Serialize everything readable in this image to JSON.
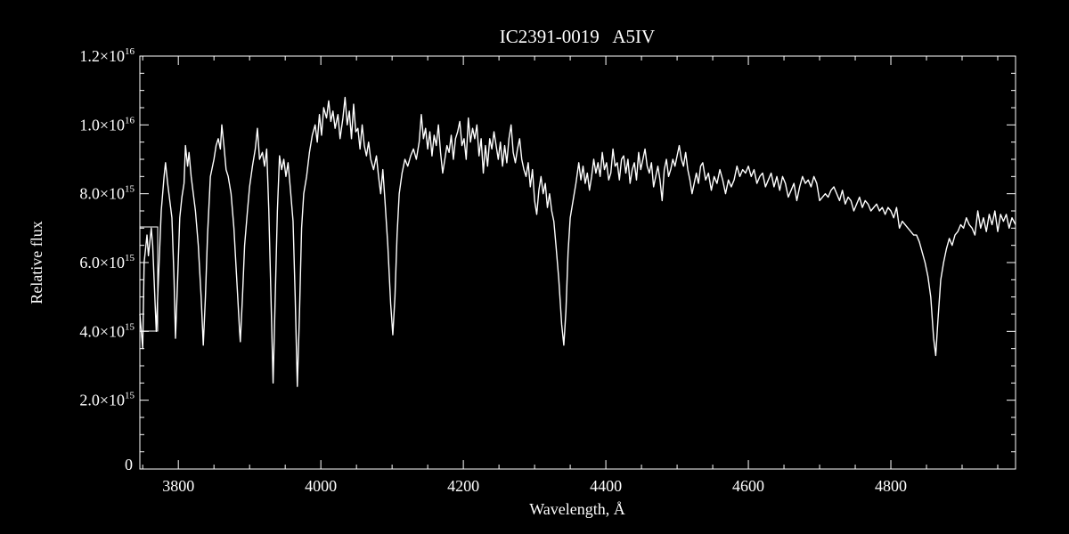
{
  "chart_data": {
    "type": "line",
    "title": "IC2391-0019   A5IV",
    "x_label": "Wavelength, Å",
    "y_label": "Relative flux",
    "color": "#ffffff",
    "xlim": [
      3746,
      4975
    ],
    "ylim": [
      0,
      1.2e+16
    ],
    "xticks": [
      3800,
      4000,
      4200,
      4400,
      4600,
      4800
    ],
    "xminorticks": [
      3750,
      3850,
      3900,
      3950,
      4050,
      4100,
      4150,
      4250,
      4300,
      4350,
      4450,
      4500,
      4550,
      4650,
      4700,
      4750,
      4850,
      4900,
      4950
    ],
    "yticks": [
      0,
      {
        "value": 2000000000000000.0,
        "label": "2.0×10",
        "exponent": "15"
      },
      {
        "value": 4000000000000000.0,
        "label": "4.0×10",
        "exponent": "15"
      },
      {
        "value": 6000000000000000.0,
        "label": "6.0×10",
        "exponent": "15"
      },
      {
        "value": 8000000000000000.0,
        "label": "8.0×10",
        "exponent": "15"
      },
      {
        "value": 1e+16,
        "label": "1.0×10",
        "exponent": "16"
      },
      {
        "value": 1.2e+16,
        "label": "1.2×10",
        "exponent": "16"
      }
    ],
    "yminorticks": [
      500000000000000.0,
      1000000000000000.0,
      1500000000000000.0,
      2500000000000000.0,
      3000000000000000.0,
      3500000000000000.0,
      4500000000000000.0,
      5000000000000000.0,
      5500000000000000.0,
      6500000000000000.0,
      7000000000000000.0,
      7500000000000000.0,
      8500000000000000.0,
      9000000000000000.0,
      9500000000000000.0,
      1.05e+16,
      1.1e+16,
      1.15e+16
    ],
    "x": [
      3746,
      3750,
      3752,
      3756,
      3758,
      3762,
      3764,
      3766,
      3769,
      3772,
      3776,
      3780,
      3782,
      3785,
      3788,
      3791,
      3794,
      3796,
      3799,
      3802,
      3805,
      3808,
      3810,
      3813,
      3815,
      3818,
      3821,
      3824,
      3828,
      3832,
      3835,
      3838,
      3841,
      3845,
      3850,
      3853,
      3856,
      3859,
      3861,
      3864,
      3867,
      3870,
      3874,
      3878,
      3882,
      3886,
      3887,
      3890,
      3893,
      3897,
      3900,
      3904,
      3908,
      3911,
      3914,
      3918,
      3921,
      3924,
      3927,
      3930,
      3933,
      3936,
      3939,
      3942,
      3945,
      3948,
      3951,
      3954,
      3957,
      3961,
      3964,
      3967,
      3970,
      3973,
      3976,
      3980,
      3984,
      3988,
      3992,
      3995,
      3998,
      4001,
      4004,
      4008,
      4011,
      4014,
      4017,
      4020,
      4024,
      4027,
      4031,
      4034,
      4037,
      4040,
      4043,
      4046,
      4049,
      4052,
      4055,
      4058,
      4061,
      4064,
      4067,
      4070,
      4074,
      4078,
      4081,
      4084,
      4087,
      4090,
      4094,
      4098,
      4101,
      4104,
      4107,
      4110,
      4114,
      4118,
      4122,
      4126,
      4130,
      4134,
      4138,
      4141,
      4144,
      4147,
      4150,
      4153,
      4156,
      4159,
      4162,
      4165,
      4168,
      4171,
      4174,
      4177,
      4180,
      4183,
      4186,
      4189,
      4192,
      4195,
      4198,
      4201,
      4204,
      4207,
      4210,
      4213,
      4216,
      4219,
      4222,
      4225,
      4228,
      4231,
      4234,
      4237,
      4240,
      4243,
      4246,
      4249,
      4252,
      4255,
      4258,
      4261,
      4264,
      4267,
      4270,
      4273,
      4276,
      4279,
      4282,
      4285,
      4288,
      4291,
      4294,
      4297,
      4300,
      4303,
      4306,
      4309,
      4312,
      4315,
      4318,
      4321,
      4324,
      4327,
      4330,
      4334,
      4338,
      4341,
      4344,
      4347,
      4350,
      4354,
      4358,
      4362,
      4365,
      4368,
      4371,
      4374,
      4377,
      4380,
      4383,
      4386,
      4389,
      4392,
      4395,
      4398,
      4401,
      4404,
      4407,
      4410,
      4413,
      4416,
      4419,
      4422,
      4425,
      4428,
      4431,
      4434,
      4437,
      4440,
      4443,
      4446,
      4449,
      4452,
      4455,
      4458,
      4461,
      4464,
      4467,
      4470,
      4473,
      4476,
      4479,
      4482,
      4485,
      4488,
      4491,
      4494,
      4497,
      4500,
      4503,
      4506,
      4509,
      4512,
      4515,
      4518,
      4521,
      4524,
      4527,
      4530,
      4533,
      4536,
      4540,
      4544,
      4548,
      4552,
      4556,
      4560,
      4564,
      4568,
      4572,
      4576,
      4580,
      4584,
      4588,
      4592,
      4596,
      4600,
      4604,
      4608,
      4612,
      4616,
      4620,
      4624,
      4628,
      4632,
      4636,
      4640,
      4644,
      4648,
      4652,
      4656,
      4660,
      4664,
      4668,
      4672,
      4676,
      4680,
      4684,
      4688,
      4692,
      4696,
      4700,
      4704,
      4708,
      4712,
      4716,
      4720,
      4724,
      4728,
      4732,
      4736,
      4740,
      4744,
      4748,
      4752,
      4756,
      4760,
      4764,
      4768,
      4772,
      4776,
      4780,
      4784,
      4788,
      4792,
      4796,
      4800,
      4804,
      4808,
      4812,
      4816,
      4820,
      4824,
      4828,
      4832,
      4836,
      4840,
      4844,
      4848,
      4852,
      4856,
      4860,
      4863,
      4866,
      4870,
      4874,
      4878,
      4882,
      4886,
      4890,
      4894,
      4898,
      4902,
      4906,
      4910,
      4914,
      4918,
      4922,
      4926,
      4930,
      4934,
      4938,
      4942,
      4946,
      4950,
      4954,
      4958,
      4962,
      4966,
      4970,
      4975
    ],
    "values": [
      4500000000000000.0,
      3500000000000000.0,
      6000000000000000.0,
      6800000000000000.0,
      6200000000000000.0,
      7000000000000000.0,
      6500000000000000.0,
      5500000000000000.0,
      4000000000000000.0,
      5500000000000000.0,
      7500000000000000.0,
      8500000000000000.0,
      8900000000000000.0,
      8300000000000000.0,
      7800000000000000.0,
      7300000000000000.0,
      5500000000000000.0,
      3800000000000000.0,
      5500000000000000.0,
      7300000000000000.0,
      7900000000000000.0,
      8300000000000000.0,
      9400000000000000.0,
      8800000000000000.0,
      9200000000000000.0,
      8500000000000000.0,
      8000000000000000.0,
      7500000000000000.0,
      6500000000000000.0,
      5000000000000000.0,
      3600000000000000.0,
      5000000000000000.0,
      6800000000000000.0,
      8500000000000000.0,
      9000000000000000.0,
      9400000000000000.0,
      9600000000000000.0,
      9300000000000000.0,
      1e+16,
      9400000000000000.0,
      8700000000000000.0,
      8500000000000000.0,
      8000000000000000.0,
      7000000000000000.0,
      5500000000000000.0,
      4000000000000000.0,
      3700000000000000.0,
      5000000000000000.0,
      6500000000000000.0,
      7500000000000000.0,
      8200000000000000.0,
      8800000000000000.0,
      9300000000000000.0,
      9900000000000000.0,
      9000000000000000.0,
      9200000000000000.0,
      8800000000000000.0,
      9300000000000000.0,
      7500000000000000.0,
      5000000000000000.0,
      2500000000000000.0,
      5000000000000000.0,
      7500000000000000.0,
      9100000000000000.0,
      8700000000000000.0,
      9000000000000000.0,
      8500000000000000.0,
      8900000000000000.0,
      8200000000000000.0,
      7200000000000000.0,
      5000000000000000.0,
      2400000000000000.0,
      4500000000000000.0,
      7000000000000000.0,
      8000000000000000.0,
      8500000000000000.0,
      9200000000000000.0,
      9700000000000000.0,
      1e+16,
      9500000000000000.0,
      1.03e+16,
      9700000000000000.0,
      1.05e+16,
      1.02e+16,
      1.07e+16,
      1.01e+16,
      1.04e+16,
      9900000000000000.0,
      1.03e+16,
      9600000000000000.0,
      1.02e+16,
      1.08e+16,
      1e+16,
      1.04e+16,
      9600000000000000.0,
      1.06e+16,
      9800000000000000.0,
      9900000000000000.0,
      9300000000000000.0,
      1e+16,
      9400000000000000.0,
      9100000000000000.0,
      9500000000000000.0,
      9000000000000000.0,
      8700000000000000.0,
      9100000000000000.0,
      8500000000000000.0,
      8000000000000000.0,
      8700000000000000.0,
      7800000000000000.0,
      6500000000000000.0,
      4800000000000000.0,
      3900000000000000.0,
      5000000000000000.0,
      6800000000000000.0,
      8000000000000000.0,
      8600000000000000.0,
      9000000000000000.0,
      8800000000000000.0,
      9100000000000000.0,
      9300000000000000.0,
      9000000000000000.0,
      9500000000000000.0,
      1.03e+16,
      9600000000000000.0,
      9900000000000000.0,
      9300000000000000.0,
      9800000000000000.0,
      9100000000000000.0,
      9700000000000000.0,
      9400000000000000.0,
      1e+16,
      9200000000000000.0,
      8600000000000000.0,
      9000000000000000.0,
      9400000000000000.0,
      9200000000000000.0,
      9700000000000000.0,
      9000000000000000.0,
      9600000000000000.0,
      9800000000000000.0,
      1.01e+16,
      9400000000000000.0,
      9600000000000000.0,
      9000000000000000.0,
      1.02e+16,
      9500000000000000.0,
      9900000000000000.0,
      9600000000000000.0,
      1e+16,
      9100000000000000.0,
      9600000000000000.0,
      8600000000000000.0,
      9400000000000000.0,
      8800000000000000.0,
      9600000000000000.0,
      9300000000000000.0,
      9800000000000000.0,
      9400000000000000.0,
      9000000000000000.0,
      9500000000000000.0,
      8800000000000000.0,
      9400000000000000.0,
      8900000000000000.0,
      9600000000000000.0,
      1e+16,
      9200000000000000.0,
      8900000000000000.0,
      9300000000000000.0,
      9600000000000000.0,
      9000000000000000.0,
      8700000000000000.0,
      8500000000000000.0,
      8900000000000000.0,
      8200000000000000.0,
      8700000000000000.0,
      7800000000000000.0,
      7400000000000000.0,
      8100000000000000.0,
      8500000000000000.0,
      8000000000000000.0,
      8300000000000000.0,
      7600000000000000.0,
      8000000000000000.0,
      7500000000000000.0,
      7200000000000000.0,
      6500000000000000.0,
      5500000000000000.0,
      4200000000000000.0,
      3600000000000000.0,
      4600000000000000.0,
      6300000000000000.0,
      7300000000000000.0,
      7800000000000000.0,
      8300000000000000.0,
      8900000000000000.0,
      8400000000000000.0,
      8800000000000000.0,
      8300000000000000.0,
      8600000000000000.0,
      8100000000000000.0,
      8500000000000000.0,
      9000000000000000.0,
      8600000000000000.0,
      8900000000000000.0,
      8500000000000000.0,
      9200000000000000.0,
      8700000000000000.0,
      8900000000000000.0,
      8400000000000000.0,
      8600000000000000.0,
      9300000000000000.0,
      8800000000000000.0,
      8900000000000000.0,
      8400000000000000.0,
      9000000000000000.0,
      9100000000000000.0,
      8600000000000000.0,
      9000000000000000.0,
      8300000000000000.0,
      8700000000000000.0,
      8900000000000000.0,
      8400000000000000.0,
      9200000000000000.0,
      8700000000000000.0,
      9000000000000000.0,
      9300000000000000.0,
      8800000000000000.0,
      8600000000000000.0,
      8900000000000000.0,
      8200000000000000.0,
      8500000000000000.0,
      8800000000000000.0,
      8400000000000000.0,
      7800000000000000.0,
      8700000000000000.0,
      9000000000000000.0,
      8500000000000000.0,
      8700000000000000.0,
      9000000000000000.0,
      8800000000000000.0,
      9100000000000000.0,
      9400000000000000.0,
      9000000000000000.0,
      8800000000000000.0,
      9200000000000000.0,
      8700000000000000.0,
      8400000000000000.0,
      8000000000000000.0,
      8300000000000000.0,
      8600000000000000.0,
      8300000000000000.0,
      8800000000000000.0,
      8900000000000000.0,
      8400000000000000.0,
      8600000000000000.0,
      8100000000000000.0,
      8500000000000000.0,
      8300000000000000.0,
      8700000000000000.0,
      8400000000000000.0,
      8000000000000000.0,
      8400000000000000.0,
      8200000000000000.0,
      8400000000000000.0,
      8800000000000000.0,
      8500000000000000.0,
      8700000000000000.0,
      8600000000000000.0,
      8800000000000000.0,
      8500000000000000.0,
      8700000000000000.0,
      8300000000000000.0,
      8500000000000000.0,
      8600000000000000.0,
      8200000000000000.0,
      8400000000000000.0,
      8600000000000000.0,
      8200000000000000.0,
      8500000000000000.0,
      8100000000000000.0,
      8500000000000000.0,
      8300000000000000.0,
      7900000000000000.0,
      8100000000000000.0,
      8300000000000000.0,
      7800000000000000.0,
      8200000000000000.0,
      8500000000000000.0,
      8300000000000000.0,
      8400000000000000.0,
      8200000000000000.0,
      8500000000000000.0,
      8300000000000000.0,
      7800000000000000.0,
      7900000000000000.0,
      8000000000000000.0,
      7900000000000000.0,
      8100000000000000.0,
      8200000000000000.0,
      8000000000000000.0,
      7800000000000000.0,
      8100000000000000.0,
      7700000000000000.0,
      7900000000000000.0,
      7800000000000000.0,
      7500000000000000.0,
      7700000000000000.0,
      7900000000000000.0,
      7600000000000000.0,
      7800000000000000.0,
      7700000000000000.0,
      7500000000000000.0,
      7600000000000000.0,
      7700000000000000.0,
      7500000000000000.0,
      7600000000000000.0,
      7400000000000000.0,
      7600000000000000.0,
      7500000000000000.0,
      7300000000000000.0,
      7600000000000000.0,
      7000000000000000.0,
      7200000000000000.0,
      7100000000000000.0,
      7000000000000000.0,
      6900000000000000.0,
      6800000000000000.0,
      6800000000000000.0,
      6600000000000000.0,
      6300000000000000.0,
      6000000000000000.0,
      5600000000000000.0,
      5000000000000000.0,
      3800000000000000.0,
      3300000000000000.0,
      4300000000000000.0,
      5500000000000000.0,
      6000000000000000.0,
      6400000000000000.0,
      6700000000000000.0,
      6500000000000000.0,
      6800000000000000.0,
      6900000000000000.0,
      7100000000000000.0,
      7000000000000000.0,
      7300000000000000.0,
      7100000000000000.0,
      7000000000000000.0,
      6800000000000000.0,
      7500000000000000.0,
      7000000000000000.0,
      7300000000000000.0,
      6900000000000000.0,
      7400000000000000.0,
      7100000000000000.0,
      7500000000000000.0,
      6900000000000000.0,
      7400000000000000.0,
      7200000000000000.0,
      7400000000000000.0,
      7000000000000000.0,
      7300000000000000.0,
      7100000000000000.0
    ]
  }
}
